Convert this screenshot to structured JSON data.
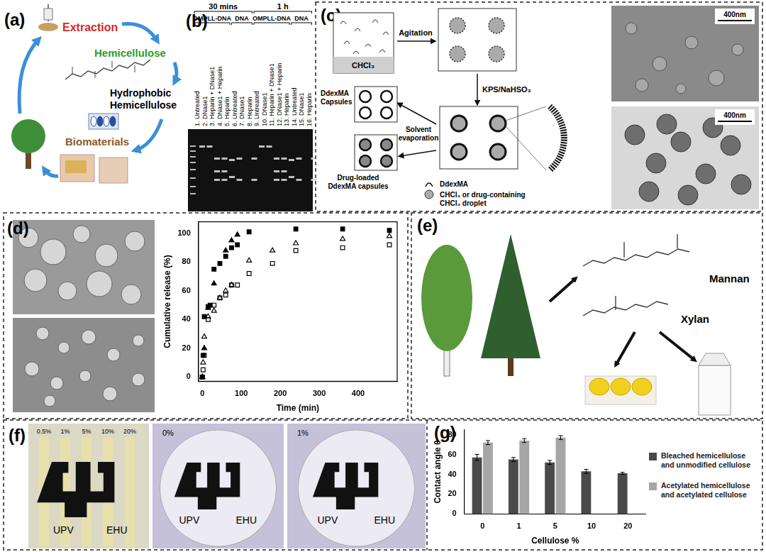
{
  "panels": {
    "a": {
      "label": "(a)",
      "extraction": "Extraction",
      "hemicellulose": "Hemicellulose",
      "hydrophobic": "Hydrophobic Hemicellulose",
      "biomaterials": "Biomaterials"
    },
    "b": {
      "label": "(b)",
      "groups": [
        {
          "time": "30 mins",
          "sets": [
            "OMPLL-DNA",
            "DNA"
          ]
        },
        {
          "time": "1 h",
          "sets": [
            "OMPLL-DNA",
            "DNA"
          ]
        }
      ],
      "lanes": [
        "1. Untreated",
        "2. DNase1",
        "3. Heparin + DNase1",
        "4. DNase1 + Heparin",
        "5. Heparin",
        "6. Untreated",
        "7. DNase1",
        "8. Heparin",
        "9. Untreated",
        "10. DNase1",
        "11. Heparin + DNase1",
        "12. DNase1 + Heparin",
        "13. Heparin",
        "14. Untreated",
        "15. DNase1",
        "16. Heparin"
      ]
    },
    "c": {
      "label": "(c)",
      "solvent": "CHCl₃",
      "agitation": "Agitation",
      "initiator": "KPS/NaHSO₃",
      "capsules": "DdexMA Capsules",
      "evaporation": "Solvent evaporation",
      "drug_capsules": "Drug-loaded DdexMA capsules",
      "key": [
        "DdexMA",
        "CHCl₃ or drug-containing CHCl₃ droplet"
      ],
      "scale_bars": [
        "400nm",
        "400nm"
      ]
    },
    "d": {
      "label": "(d)"
    },
    "e": {
      "label": "(e)",
      "mannan": "Mannan",
      "xylan": "Xylan"
    },
    "f": {
      "label": "(f)",
      "strip_labels": [
        "0.5%",
        "1%",
        "5%",
        "10%",
        "20%"
      ],
      "film_labels": [
        "0%",
        "1%"
      ],
      "logo": [
        "UPV",
        "EHU"
      ]
    },
    "g": {
      "label": "(g)"
    }
  },
  "chart_data": [
    {
      "type": "scatter",
      "x_label": "Time (min)",
      "y_label": "Cumulative release (%)",
      "xlim": [
        -10,
        500
      ],
      "xticks": [
        0,
        100,
        200,
        300,
        400
      ],
      "ylim": [
        -3,
        108
      ],
      "yticks": [
        0,
        20,
        40,
        60,
        80,
        100
      ],
      "grid": false,
      "series": [
        {
          "color": "#000000",
          "marker": "square",
          "x": [
            0,
            2,
            5,
            15,
            20,
            30,
            45,
            60,
            75,
            90,
            120,
            240,
            360,
            480
          ],
          "values": [
            0,
            15,
            42,
            49,
            50,
            75,
            79,
            84,
            90,
            92,
            101,
            103,
            103,
            102
          ]
        },
        {
          "color": "#000000",
          "marker": "triangle",
          "x": [
            0,
            5,
            15,
            30,
            60,
            75,
            90
          ],
          "values": [
            0,
            20,
            48,
            65,
            88,
            95,
            99
          ]
        },
        {
          "color": "#000000",
          "marker": "open_triangle",
          "x": [
            0,
            2,
            5,
            15,
            30,
            45,
            60,
            75,
            120,
            180,
            240,
            360,
            480
          ],
          "values": [
            0,
            10,
            28,
            42,
            46,
            55,
            60,
            64,
            81,
            88,
            93,
            96,
            98
          ]
        },
        {
          "color": "#000000",
          "marker": "open_square",
          "x": [
            0,
            2,
            5,
            15,
            30,
            45,
            60,
            75,
            90,
            120,
            180,
            240,
            360,
            480
          ],
          "values": [
            0,
            5,
            15,
            40,
            50,
            55,
            57,
            64,
            64,
            72,
            79,
            88,
            90,
            92
          ]
        }
      ]
    },
    {
      "type": "bar",
      "x_label": "Cellulose %",
      "y_label": "Contact angle θ",
      "categories": [
        0,
        1,
        5,
        10,
        20
      ],
      "ylim": [
        0,
        85
      ],
      "yticks": [
        0,
        20,
        40,
        60,
        80
      ],
      "grid": false,
      "legend": "right",
      "series": [
        {
          "name": "Bleached hemicellulose and unmodified cellulose",
          "color": "#4a4a4a",
          "values": [
            57,
            55,
            52,
            43,
            41
          ],
          "errors": [
            3,
            2,
            2,
            2,
            1
          ]
        },
        {
          "name": "Acetylated hemicellulose and acetylated cellulose",
          "color": "#a6a6a6",
          "values": [
            72,
            74,
            77,
            null,
            null
          ],
          "errors": [
            2,
            2,
            2,
            null,
            null
          ]
        }
      ]
    }
  ]
}
